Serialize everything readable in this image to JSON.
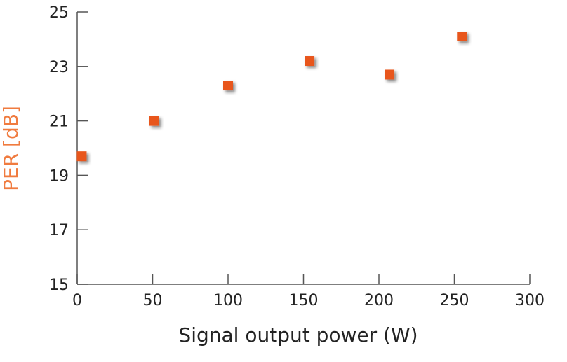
{
  "chart_data": {
    "type": "scatter",
    "x_label": "Signal output power (W)",
    "y_label": "PER [dB]",
    "series": [
      {
        "color": "#e8561e",
        "x": [
          3,
          51,
          100,
          154,
          207,
          255
        ],
        "values": [
          19.7,
          21.0,
          22.3,
          23.2,
          22.7,
          24.1
        ]
      }
    ],
    "xlim": [
      0,
      300
    ],
    "xticks": [
      0,
      50,
      100,
      150,
      200,
      250,
      300
    ],
    "ylim": [
      15,
      25
    ],
    "yticks": [
      15,
      17,
      19,
      21,
      23,
      25
    ],
    "y_label_color": "#f07b3f"
  }
}
